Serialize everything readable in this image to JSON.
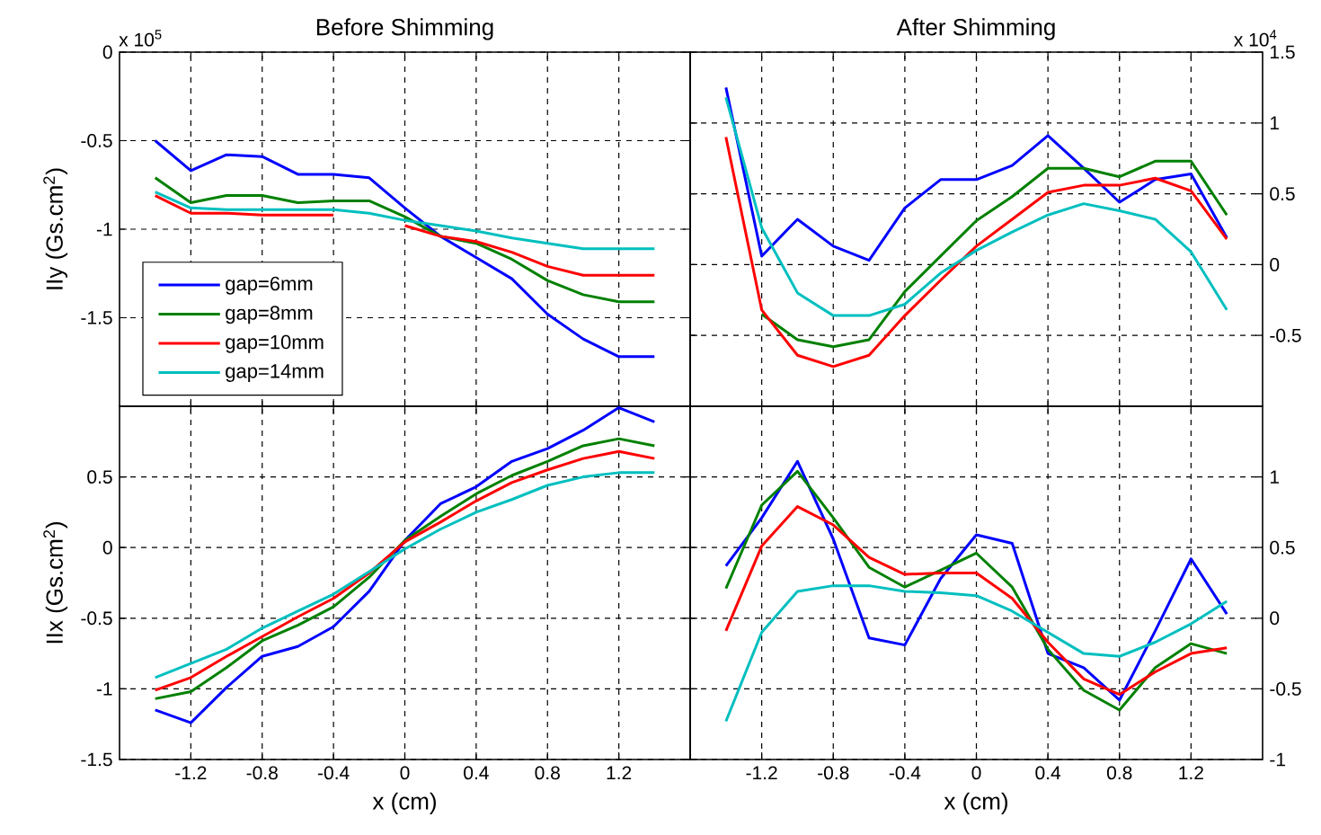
{
  "chart_data": [
    {
      "type": "line",
      "title": "Before Shimming",
      "ylabel": "IIy (Gs.cm$^{2}$)",
      "annotations": [
        "x 10$^{5}$"
      ],
      "x": [
        -1.4,
        -1.2,
        -1.0,
        -0.8,
        -0.6,
        -0.4,
        -0.2,
        0,
        0.2,
        0.4,
        0.6,
        0.8,
        1.0,
        1.2,
        1.4
      ],
      "xlim": [
        -1.6,
        1.6
      ],
      "xticks": [
        -1.2,
        -0.8,
        -0.4,
        0,
        0.4,
        0.8,
        1.2
      ],
      "ylim": [
        -2,
        0
      ],
      "yticks": [
        -1.5,
        -1,
        -0.5,
        0
      ],
      "grid": true,
      "legend": "bottom left",
      "tick_labels": "y",
      "series": [
        {
          "name": "gap=6mm",
          "color": "#0000ff",
          "values": [
            -0.5,
            -0.67,
            -0.58,
            -0.59,
            -0.69,
            -0.69,
            -0.71,
            -0.88,
            -1.04,
            -1.16,
            -1.28,
            -1.48,
            -1.62,
            -1.72,
            -1.72
          ]
        },
        {
          "name": "gap=8mm",
          "color": "#008000",
          "values": [
            -0.71,
            -0.85,
            -0.81,
            -0.81,
            -0.85,
            -0.84,
            -0.84,
            -0.93,
            -1.04,
            -1.08,
            -1.17,
            -1.29,
            -1.37,
            -1.41,
            -1.41
          ]
        },
        {
          "name": "gap=10mm",
          "color": "#ff0000",
          "values": [
            -0.81,
            -0.91,
            -0.91,
            -0.92,
            -0.92,
            -0.92,
            null,
            -0.98,
            -1.04,
            -1.07,
            -1.13,
            -1.21,
            -1.26,
            -1.26,
            -1.26
          ]
        },
        {
          "name": "gap=14mm",
          "color": "#00bfbf",
          "values": [
            -0.79,
            -0.88,
            -0.89,
            -0.89,
            -0.89,
            -0.89,
            -0.91,
            -0.95,
            -0.98,
            -1.01,
            -1.05,
            -1.08,
            -1.11,
            -1.11,
            -1.11
          ]
        }
      ]
    },
    {
      "type": "line",
      "title": "After Shimming",
      "annotations": [
        "x 10$^{4}$"
      ],
      "x": [
        -1.4,
        -1.2,
        -1.0,
        -0.8,
        -0.6,
        -0.4,
        -0.2,
        0,
        0.2,
        0.4,
        0.6,
        0.8,
        1.0,
        1.2,
        1.4
      ],
      "xlim": [
        -1.6,
        1.6
      ],
      "xticks": [
        -1.2,
        -0.8,
        -0.4,
        0,
        0.4,
        0.8,
        1.2
      ],
      "y2lim": [
        -1,
        1.5
      ],
      "y2ticks": [
        -0.5,
        0,
        0.5,
        1,
        1.5
      ],
      "grid": true,
      "tick_labels": "y",
      "series": [
        {
          "color": "#0000ff",
          "axis": "y2",
          "values": [
            1.25,
            0.06,
            0.32,
            0.13,
            0.03,
            0.4,
            0.6,
            0.6,
            0.7,
            0.91,
            0.68,
            0.44,
            0.6,
            0.64,
            0.19
          ]
        },
        {
          "color": "#008000",
          "axis": "y2",
          "values": [
            null,
            -0.35,
            -0.53,
            -0.58,
            -0.53,
            -0.19,
            0.06,
            0.31,
            0.48,
            0.68,
            0.68,
            0.62,
            0.73,
            0.73,
            0.35
          ]
        },
        {
          "color": "#ff0000",
          "axis": "y2",
          "values": [
            0.9,
            -0.32,
            -0.64,
            -0.72,
            -0.64,
            -0.36,
            -0.11,
            0.13,
            0.32,
            0.51,
            0.56,
            0.56,
            0.61,
            0.52,
            0.18
          ]
        },
        {
          "color": "#00bfbf",
          "axis": "y2",
          "values": [
            1.18,
            0.26,
            -0.2,
            -0.36,
            -0.36,
            -0.28,
            -0.06,
            0.1,
            0.23,
            0.35,
            0.43,
            0.38,
            0.32,
            0.09,
            -0.32
          ]
        }
      ]
    },
    {
      "type": "line",
      "xlabel": "x (cm)",
      "ylabel": "IIx (Gs.cm$^{2}$)",
      "x": [
        -1.4,
        -1.2,
        -1.0,
        -0.8,
        -0.6,
        -0.4,
        -0.2,
        0,
        0.2,
        0.4,
        0.6,
        0.8,
        1.0,
        1.2,
        1.4
      ],
      "xlim": [
        -1.6,
        1.6
      ],
      "xticks": [
        -1.2,
        -0.8,
        -0.4,
        0,
        0.4,
        0.8,
        1.2
      ],
      "ylim": [
        -1.5,
        1
      ],
      "yticks": [
        -1.5,
        -1,
        -0.5,
        0,
        0.5
      ],
      "grid": true,
      "series": [
        {
          "color": "#0000ff",
          "values": [
            -1.15,
            -1.24,
            -0.99,
            -0.77,
            -0.7,
            -0.56,
            -0.31,
            0.05,
            0.31,
            0.43,
            0.61,
            0.7,
            0.83,
            0.99,
            0.89
          ]
        },
        {
          "color": "#008000",
          "values": [
            -1.07,
            -1.02,
            -0.85,
            -0.66,
            -0.55,
            -0.42,
            -0.21,
            0.05,
            0.22,
            0.38,
            0.51,
            0.61,
            0.72,
            0.77,
            0.72
          ]
        },
        {
          "color": "#ff0000",
          "values": [
            -1.01,
            -0.92,
            -0.77,
            -0.63,
            -0.49,
            -0.36,
            -0.18,
            0.04,
            0.18,
            0.33,
            0.46,
            0.55,
            0.63,
            0.68,
            0.63
          ]
        },
        {
          "color": "#00bfbf",
          "values": [
            -0.92,
            -0.82,
            -0.72,
            -0.57,
            -0.45,
            -0.33,
            -0.17,
            -0.01,
            0.13,
            0.25,
            0.34,
            0.44,
            0.5,
            0.53,
            0.53
          ]
        }
      ]
    },
    {
      "type": "line",
      "xlabel": "x (cm)",
      "x": [
        -1.4,
        -1.2,
        -1.0,
        -0.8,
        -0.6,
        -0.4,
        -0.2,
        0,
        0.2,
        0.4,
        0.6,
        0.8,
        1.0,
        1.2,
        1.4
      ],
      "xlim": [
        -1.6,
        1.6
      ],
      "xticks": [
        -1.2,
        -0.8,
        -0.4,
        0,
        0.4,
        0.8,
        1.2
      ],
      "y2lim": [
        -1,
        1.5
      ],
      "y2ticks": [
        -1,
        -0.5,
        0,
        0.5,
        1
      ],
      "grid": true,
      "series": [
        {
          "color": "#0000ff",
          "axis": "y2",
          "values": [
            0.37,
            0.71,
            1.11,
            0.56,
            -0.14,
            -0.19,
            0.28,
            0.59,
            0.53,
            -0.25,
            -0.35,
            -0.58,
            -0.09,
            0.42,
            0.03
          ]
        },
        {
          "color": "#008000",
          "axis": "y2",
          "values": [
            0.21,
            0.8,
            1.04,
            0.71,
            0.36,
            0.22,
            0.34,
            0.46,
            0.22,
            -0.22,
            -0.51,
            -0.65,
            -0.35,
            -0.18,
            -0.25
          ]
        },
        {
          "color": "#ff0000",
          "axis": "y2",
          "values": [
            -0.09,
            0.51,
            0.79,
            0.66,
            0.43,
            0.31,
            0.32,
            0.32,
            0.14,
            -0.17,
            -0.43,
            -0.54,
            -0.38,
            -0.25,
            -0.21
          ]
        },
        {
          "color": "#00bfbf",
          "axis": "y2",
          "values": [
            -0.73,
            -0.1,
            0.19,
            0.23,
            0.23,
            0.19,
            0.18,
            0.16,
            0.05,
            -0.1,
            -0.25,
            -0.27,
            -0.17,
            -0.04,
            0.12
          ]
        }
      ]
    }
  ]
}
